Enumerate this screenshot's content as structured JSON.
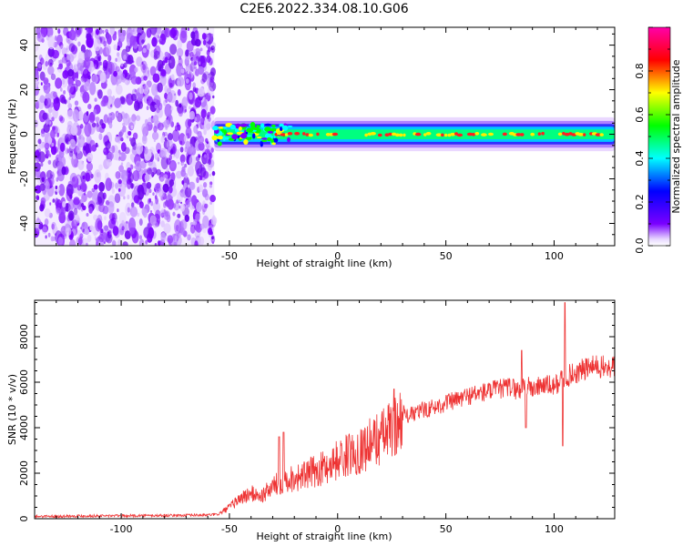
{
  "figure": {
    "title": "C2E6.2022.334.08.10.G06"
  },
  "chart_data": [
    {
      "type": "heatmap",
      "title": "C2E6.2022.334.08.10.G06",
      "xlabel": "Height of straight line (km)",
      "ylabel": "Frequency (Hz)",
      "xlim": [
        -140,
        128
      ],
      "ylim": [
        -50,
        48
      ],
      "x_ticks": [
        -100,
        -50,
        0,
        50,
        100
      ],
      "y_ticks": [
        -40,
        -20,
        0,
        20,
        40
      ],
      "noise_region_x": [
        -140,
        -57
      ],
      "signal_start_x": -57,
      "signal_center_frequency": 0,
      "signal_band_halfwidth": 4,
      "grid": false,
      "colorbar": {
        "label": "Normalized spectral amplitude",
        "range": [
          0,
          1
        ],
        "ticks": [
          0.0,
          0.2,
          0.4,
          0.6,
          0.8
        ],
        "tick_labels": [
          "0.0",
          "0.2",
          "0.4",
          "0.6",
          "0.8"
        ],
        "colormap": [
          "#ffffff",
          "#7a00ff",
          "#0000ff",
          "#00ffff",
          "#00ff00",
          "#ffff00",
          "#ff0000",
          "#ff00ff"
        ]
      }
    },
    {
      "type": "line",
      "xlabel": "Height of straight line (km)",
      "ylabel": "SNR (10 * v/v)",
      "xlim": [
        -140,
        128
      ],
      "ylim": [
        0,
        9600
      ],
      "x_ticks": [
        -100,
        -50,
        0,
        50,
        100
      ],
      "y_ticks": [
        0,
        2000,
        4000,
        6000,
        8000
      ],
      "line_color": "#ee3333",
      "grid": false,
      "series": [
        {
          "x": [
            -140,
            -120,
            -100,
            -80,
            -60,
            -55,
            -50,
            -45,
            -40,
            -35,
            -30,
            -25,
            -20,
            -15,
            -10,
            -5,
            0,
            5,
            10,
            15,
            20,
            25,
            28,
            30,
            32,
            35,
            40,
            45,
            50,
            55,
            60,
            65,
            70,
            75,
            80,
            84,
            86,
            88,
            90,
            95,
            100,
            103,
            105,
            107,
            110,
            115,
            120,
            125,
            128
          ],
          "y": [
            100,
            120,
            130,
            140,
            160,
            200,
            500,
            900,
            1100,
            1000,
            1400,
            1700,
            1800,
            1900,
            2100,
            2300,
            2600,
            2800,
            3000,
            3300,
            3600,
            3900,
            4100,
            4700,
            4500,
            4600,
            4800,
            4900,
            5100,
            5200,
            5400,
            5500,
            5600,
            5700,
            5800,
            5600,
            5900,
            5800,
            5700,
            5900,
            5800,
            6100,
            6200,
            6300,
            6400,
            6600,
            6700,
            6600,
            6700
          ]
        }
      ],
      "spikes": [
        {
          "x": -27,
          "y": 3600
        },
        {
          "x": -25,
          "y": 3800
        },
        {
          "x": 26,
          "y": 5700
        },
        {
          "x": 85,
          "y": 7400
        },
        {
          "x": 87,
          "y": 4000
        },
        {
          "x": 105,
          "y": 9500
        },
        {
          "x": 104,
          "y": 3200
        }
      ]
    }
  ]
}
